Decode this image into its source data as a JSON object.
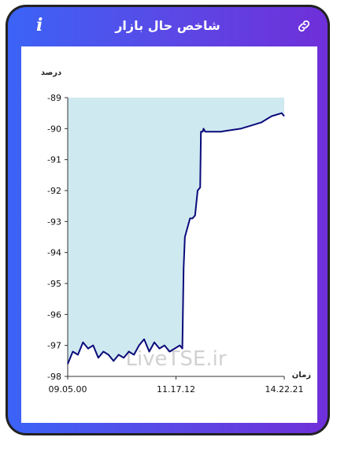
{
  "header": {
    "title": "شاخص حال بازار",
    "info_icon": "i",
    "link_icon": "link-icon"
  },
  "colors": {
    "frame": "#222222",
    "gradient_start": "#3b63f6",
    "gradient_end": "#6f2fd9",
    "area_fill": "#cfe9f0",
    "line": "#0b0b7a"
  },
  "chart_data": {
    "type": "line",
    "ylabel": "درصد",
    "xlabel": "زمان",
    "ylim": [
      -98,
      -89
    ],
    "yticks": [
      "-89",
      "-90",
      "-91",
      "-92",
      "-93",
      "-94",
      "-95",
      "-96",
      "-97",
      "-98"
    ],
    "xticks": [
      "09.05.00",
      "11.17.12",
      "14.22.21"
    ],
    "watermark": "LiveTSE.ir",
    "series": [
      {
        "x": [
          0,
          2,
          4,
          6,
          8,
          10,
          12,
          14,
          16,
          18,
          20,
          22,
          24,
          26,
          28,
          30,
          32,
          34,
          36,
          38,
          40,
          42,
          44,
          45,
          45.5,
          46,
          48,
          49,
          50,
          51,
          52,
          52.3,
          53,
          53.3,
          54,
          56,
          60,
          64,
          68,
          72,
          76,
          78,
          80,
          82,
          84,
          85
        ],
        "values": [
          -97.6,
          -97.2,
          -97.3,
          -96.9,
          -97.1,
          -97.0,
          -97.4,
          -97.2,
          -97.3,
          -97.5,
          -97.3,
          -97.4,
          -97.2,
          -97.3,
          -97.0,
          -96.8,
          -97.2,
          -96.9,
          -97.1,
          -97.0,
          -97.2,
          -97.1,
          -97.0,
          -97.1,
          -94.5,
          -93.5,
          -92.9,
          -92.9,
          -92.8,
          -92.0,
          -91.9,
          -90.1,
          -90.1,
          -90.0,
          -90.1,
          -90.1,
          -90.1,
          -90.05,
          -90.0,
          -89.9,
          -89.8,
          -89.7,
          -89.6,
          -89.55,
          -89.5,
          -89.6
        ]
      }
    ],
    "xlim": [
      0,
      85
    ]
  }
}
